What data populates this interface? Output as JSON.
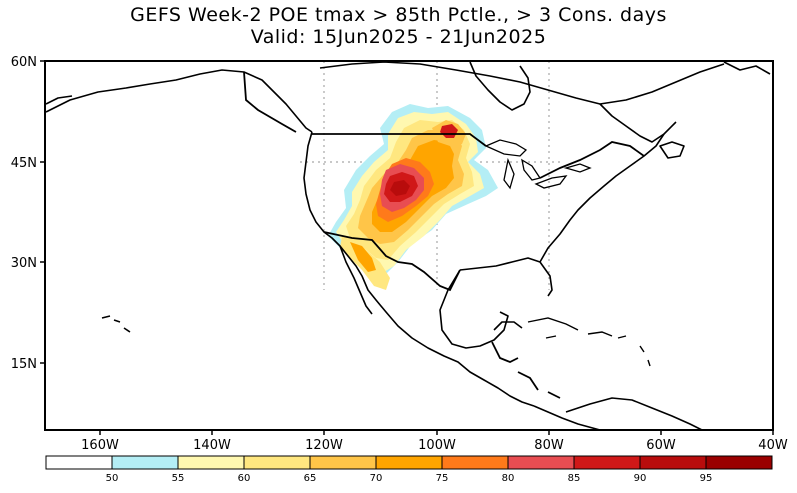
{
  "title": {
    "line1": "GEFS Week-2 POE tmax > 85th Pctle., > 3 Cons. days",
    "line2": "Valid: 15Jun2025 - 21Jun2025"
  },
  "map": {
    "region": "North America",
    "lat_labels": [
      "60N",
      "45N",
      "30N",
      "15N"
    ],
    "lon_labels": [
      "160W",
      "140W",
      "120W",
      "100W",
      "80W",
      "60W",
      "40W"
    ],
    "colors": {
      "land_outline": "#000000",
      "grid": "#a0a0a0",
      "background": "#ffffff"
    }
  },
  "colorbar": {
    "ticks": [
      "50",
      "55",
      "60",
      "65",
      "70",
      "75",
      "80",
      "85",
      "90",
      "95"
    ],
    "colors": [
      "#ffffff",
      "#b4eef5",
      "#fff8b0",
      "#ffe780",
      "#ffc548",
      "#ffa500",
      "#ff7a1a",
      "#e84d52",
      "#d01818",
      "#b80c0c",
      "#9a0000"
    ]
  }
}
